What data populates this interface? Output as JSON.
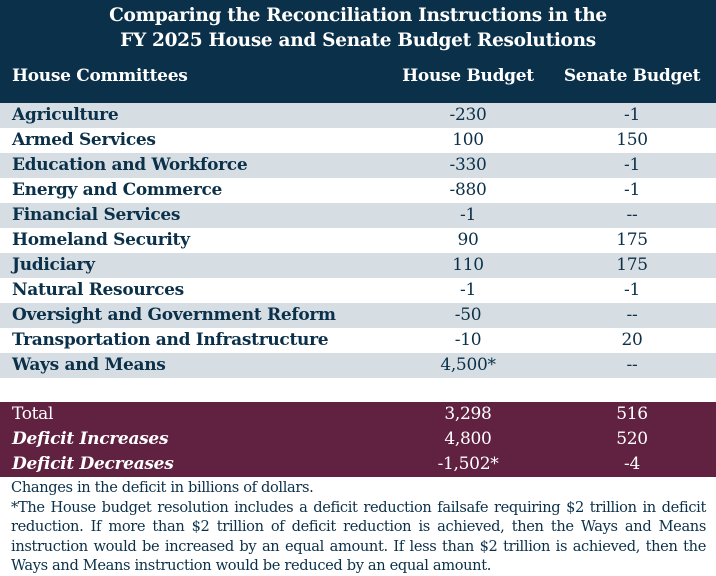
{
  "title_line1": "Comparing the Reconciliation Instructions in the",
  "title_line2": "FY 2025 House and Senate Budget Resolutions",
  "columns": [
    "House Committees",
    "House Budget",
    "Senate Budget"
  ],
  "rows": [
    {
      "name": "Agriculture",
      "house": "-230",
      "senate": "-1"
    },
    {
      "name": "Armed Services",
      "house": "100",
      "senate": "150"
    },
    {
      "name": "Education and Workforce",
      "house": "-330",
      "senate": "-1"
    },
    {
      "name": "Energy and Commerce",
      "house": "-880",
      "senate": "-1"
    },
    {
      "name": "Financial Services",
      "house": "-1",
      "senate": "--"
    },
    {
      "name": "Homeland Security",
      "house": "90",
      "senate": "175"
    },
    {
      "name": "Judiciary",
      "house": "110",
      "senate": "175"
    },
    {
      "name": "Natural Resources",
      "house": "-1",
      "senate": "-1"
    },
    {
      "name": "Oversight and Government Reform",
      "house": "-50",
      "senate": "--"
    },
    {
      "name": "Transportation and Infrastructure",
      "house": "-10",
      "senate": "20"
    },
    {
      "name": "Ways and Means",
      "house": "4,500*",
      "senate": "--"
    }
  ],
  "totals": [
    {
      "name": "Total",
      "house": "3,298",
      "senate": "516"
    },
    {
      "name": "Deficit Increases",
      "house": "4,800",
      "senate": "520"
    },
    {
      "name": "Deficit Decreases",
      "house": "-1,502*",
      "senate": "-4"
    }
  ],
  "note_units": "Changes in the deficit in billions of dollars.",
  "note_footnote": "*The House budget resolution includes a deficit reduction failsafe requiring $2 trillion in deficit reduction. If more than $2 trillion of deficit reduction is achieved, then the Ways and Means instruction would be increased by an equal amount. If less than $2 trillion is achieved, then the Ways and Means instruction would be reduced by an equal amount.",
  "colors": {
    "header": "#0b3049",
    "alt_row": "#d6dee4",
    "totals": "#612242"
  }
}
